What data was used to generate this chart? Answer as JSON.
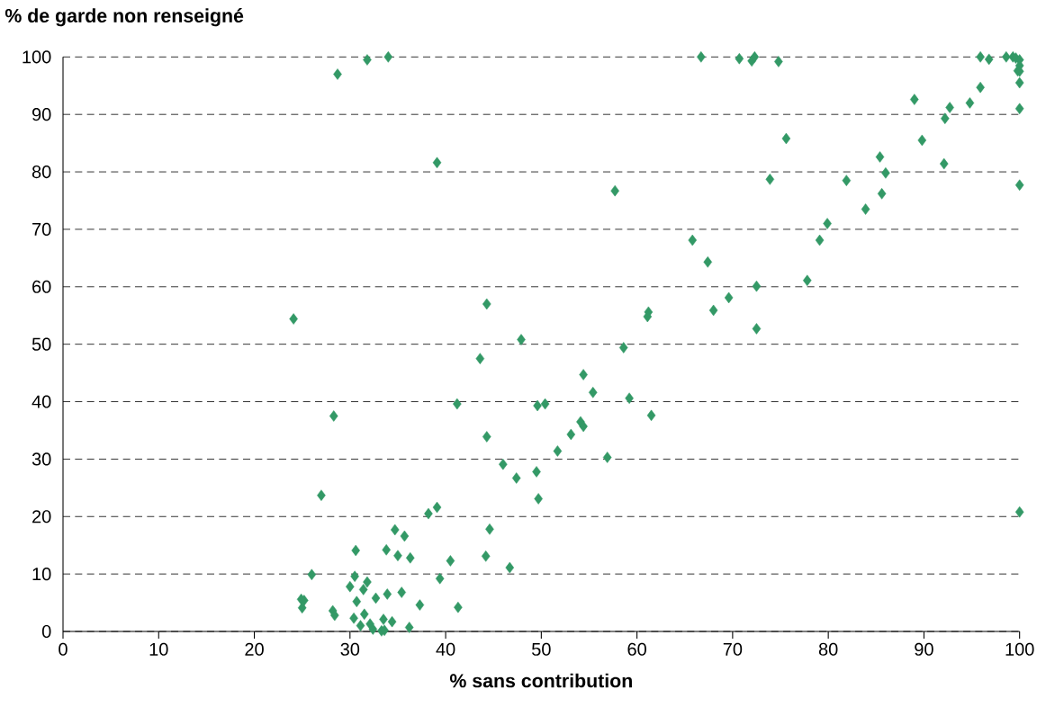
{
  "chart_data": {
    "type": "scatter",
    "xlabel": "% sans contribution",
    "ylabel": "% de garde non renseigné",
    "x": [
      28.7,
      31.8,
      34,
      66.7,
      70.7,
      72,
      72.3,
      74.8,
      95.9,
      96.8,
      98.6,
      99.3,
      99.6,
      100,
      100,
      99.8,
      100,
      95.9,
      94.8,
      92.7,
      89,
      92.2,
      100,
      100,
      75.6,
      89.8,
      85.4,
      92.1,
      39.1,
      86,
      73.9,
      81.9,
      100,
      57.7,
      85.6,
      83.9,
      79.9,
      65.8,
      79.1,
      67.4,
      77.8,
      72.5,
      69.6,
      68,
      61.2,
      61.1,
      72.5,
      24.1,
      44.3,
      47.9,
      58.6,
      43.6,
      54.4,
      55.4,
      59.2,
      50.4,
      49.6,
      41.2,
      61.5,
      28.3,
      54.1,
      54.4,
      53.1,
      44.3,
      51.7,
      56.9,
      46,
      49.5,
      47.4,
      49.7,
      27,
      100,
      39.1,
      38.2,
      34.7,
      44.6,
      35.7,
      30.6,
      33.8,
      35,
      36.3,
      44.2,
      40.5,
      46.7,
      26,
      30.5,
      31.8,
      39.4,
      30,
      31.4,
      33.9,
      35.4,
      32.7,
      30.7,
      25.2,
      24.9,
      25,
      37.3,
      41.3,
      28.2,
      28.4,
      31.5,
      30.4,
      33.5,
      34.4,
      31.1,
      32.1,
      32.4,
      33.3,
      36.2,
      33.6
    ],
    "values": [
      97,
      99.5,
      100,
      100,
      99.7,
      99.3,
      100,
      99.2,
      100,
      99.6,
      100,
      100,
      99.8,
      99.5,
      98.5,
      97.6,
      97.5,
      94.7,
      92,
      91.2,
      92.6,
      89.3,
      95.5,
      91,
      85.8,
      85.5,
      82.6,
      81.4,
      81.6,
      79.8,
      78.7,
      78.5,
      77.7,
      76.7,
      76.2,
      73.5,
      71,
      68.1,
      68.1,
      64.3,
      61.1,
      60.1,
      58.1,
      55.9,
      55.6,
      54.8,
      52.7,
      54.4,
      57,
      50.8,
      49.4,
      47.5,
      44.7,
      41.6,
      40.6,
      39.6,
      39.3,
      39.6,
      37.6,
      37.5,
      36.5,
      35.7,
      34.3,
      33.9,
      31.4,
      30.3,
      29.1,
      27.8,
      26.7,
      23.1,
      23.7,
      20.8,
      21.6,
      20.5,
      17.7,
      17.8,
      16.6,
      14.1,
      14.2,
      13.2,
      12.8,
      13.1,
      12.3,
      11.1,
      9.9,
      9.6,
      8.6,
      9.2,
      7.8,
      7.3,
      6.5,
      6.8,
      5.8,
      5.2,
      5.4,
      5.6,
      4.1,
      4.6,
      4.2,
      3.6,
      2.8,
      3,
      2.3,
      2.1,
      1.7,
      1,
      1.3,
      0.4,
      0.1,
      0.7,
      0.2
    ],
    "color": "#339966",
    "marker": "diamond",
    "grid": "y",
    "xlim": [
      0,
      100
    ],
    "xticks": [
      0,
      10,
      20,
      30,
      40,
      50,
      60,
      70,
      80,
      90,
      100
    ],
    "ylim": [
      0,
      100
    ],
    "yticks": [
      0,
      10,
      20,
      30,
      40,
      50,
      60,
      70,
      80,
      90,
      100
    ]
  }
}
